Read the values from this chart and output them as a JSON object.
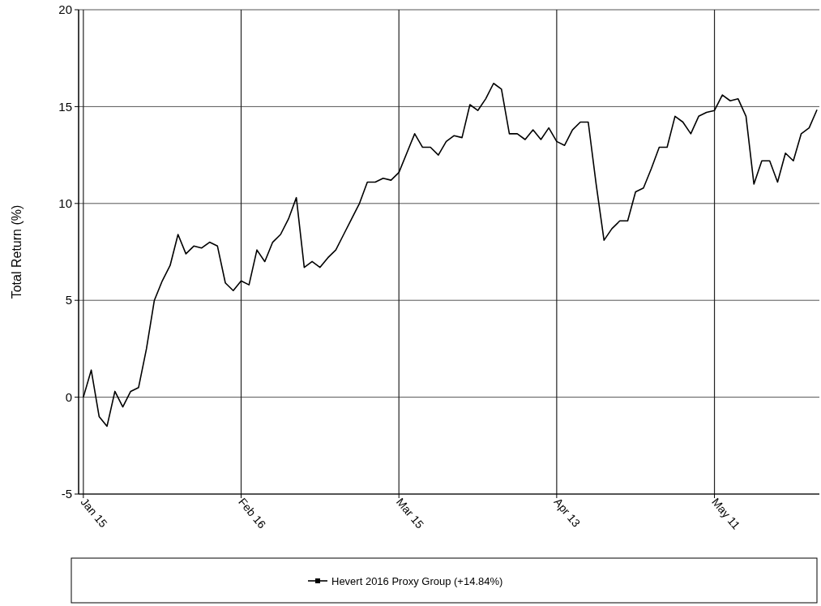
{
  "chart_data": {
    "type": "line",
    "ylabel": "Total Return (%)",
    "categories": [
      "Jan 15",
      null,
      null,
      null,
      null,
      null,
      null,
      null,
      null,
      null,
      null,
      null,
      null,
      null,
      null,
      null,
      null,
      null,
      null,
      null,
      "Feb 16",
      null,
      null,
      null,
      null,
      null,
      null,
      null,
      null,
      null,
      null,
      null,
      null,
      null,
      null,
      null,
      null,
      null,
      null,
      null,
      "Mar 15",
      null,
      null,
      null,
      null,
      null,
      null,
      null,
      null,
      null,
      null,
      null,
      null,
      null,
      null,
      null,
      null,
      null,
      null,
      null,
      "Apr 13",
      null,
      null,
      null,
      null,
      null,
      null,
      null,
      null,
      null,
      null,
      null,
      null,
      null,
      null,
      null,
      null,
      null,
      null,
      null,
      "May 11",
      null,
      null,
      null,
      null,
      null,
      null,
      null,
      null,
      null,
      null,
      null,
      null,
      null
    ],
    "series": [
      {
        "name": "Hevert 2016 Proxy Group (+14.84%)",
        "color": "#000000",
        "values": [
          0,
          1.4,
          -1.0,
          -1.5,
          0.3,
          -0.5,
          0.3,
          0.5,
          2.5,
          5.0,
          6.0,
          6.8,
          8.4,
          7.4,
          7.8,
          7.7,
          8.0,
          7.8,
          5.9,
          5.5,
          6.0,
          5.8,
          7.6,
          7.0,
          8.0,
          8.4,
          9.2,
          10.3,
          6.7,
          7.0,
          6.7,
          7.2,
          7.6,
          8.4,
          9.2,
          10.0,
          11.1,
          11.1,
          11.3,
          11.2,
          11.6,
          12.6,
          13.6,
          12.9,
          12.9,
          12.5,
          13.2,
          13.5,
          13.4,
          15.1,
          14.8,
          15.4,
          16.2,
          15.9,
          13.6,
          13.6,
          13.3,
          13.8,
          13.3,
          13.9,
          13.2,
          13.0,
          13.8,
          14.2,
          14.2,
          11.0,
          8.1,
          8.7,
          9.1,
          9.1,
          10.6,
          10.8,
          11.8,
          12.9,
          12.9,
          14.5,
          14.2,
          13.6,
          14.5,
          14.7,
          14.8,
          15.6,
          15.3,
          15.4,
          14.5,
          11.0,
          12.2,
          12.2,
          11.1,
          12.6,
          12.2,
          13.6,
          13.9,
          14.84
        ]
      }
    ],
    "ylim": [
      -5,
      20
    ],
    "yticks": [
      -5,
      0,
      5,
      10,
      15,
      20
    ],
    "grid": true,
    "legend": "bottom"
  }
}
